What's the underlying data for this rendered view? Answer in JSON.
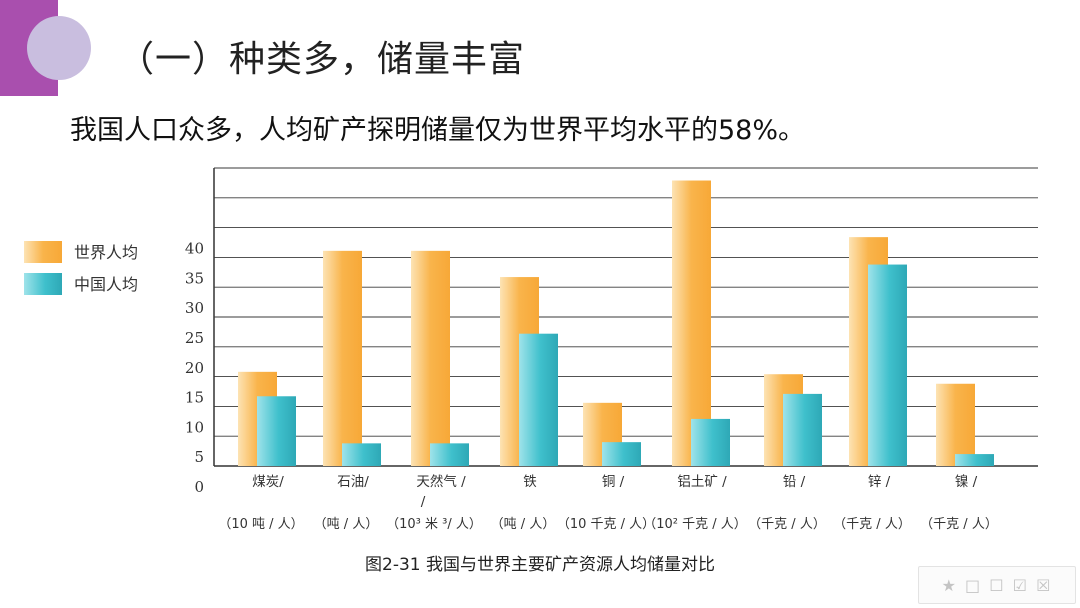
{
  "slide": {
    "title": "（一）种类多，储量丰富",
    "subtitle": "我国人口众多，人均矿产探明储量仅为世界平均水平的58%。",
    "caption": "图2-31 我国与世界主要矿产资源人均储量对比",
    "watermark": "★ □ ☐ ☑ ☒"
  },
  "colors": {
    "accent_purple": "#a94fae",
    "accent_circle": "#c9bedf",
    "world_bar": "#f9b44b",
    "china_bar": "#3fc0cc"
  },
  "chart_data": {
    "type": "bar",
    "categories": [
      "煤炭/",
      "石油/",
      "天然气 /",
      "铁",
      "铜 /",
      "铝土矿 /",
      "铅 /",
      "锌 /",
      "镍 /"
    ],
    "category_extra_lines": [
      "",
      "",
      "/",
      "",
      "",
      "",
      "",
      "",
      ""
    ],
    "unit_labels": [
      "（10 吨 / 人）",
      "（吨 / 人）",
      "（10³ 米 ³/ 人）",
      "（吨 / 人）",
      "（10 千克 / 人）",
      "（10² 千克 / 人）",
      "（千克 / 人）",
      "（千克 / 人）",
      "（千克 / 人）"
    ],
    "series": [
      {
        "name": "世界人均",
        "values": [
          15.8,
          36.1,
          36.1,
          31.7,
          10.6,
          47.9,
          15.4,
          38.4,
          13.8
        ]
      },
      {
        "name": "中国人均",
        "values": [
          11.7,
          3.8,
          3.8,
          22.2,
          4.0,
          7.9,
          12.1,
          33.8,
          2.0
        ]
      }
    ],
    "ytick_labels": [
      "0",
      "5",
      "10",
      "15",
      "20",
      "25",
      "30",
      "35",
      "40"
    ],
    "ylim": [
      0,
      50
    ],
    "legend": "left",
    "grid": true
  }
}
